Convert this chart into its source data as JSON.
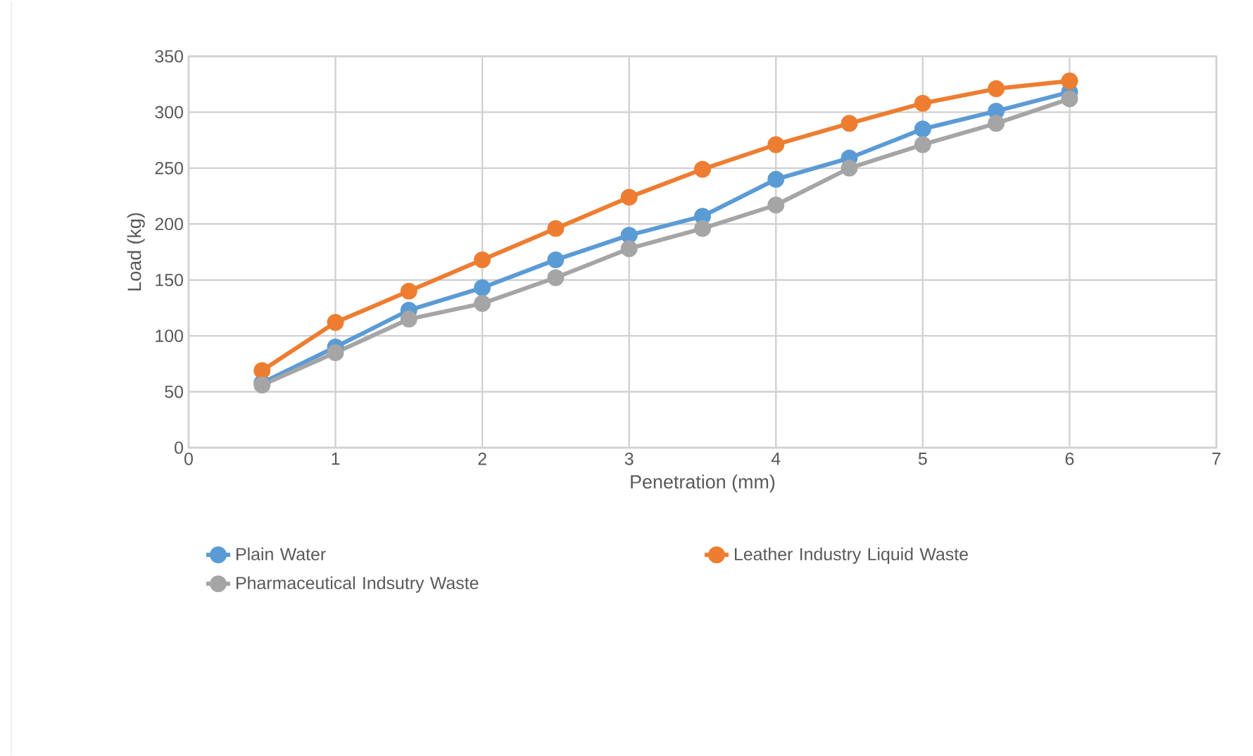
{
  "chart_data": {
    "type": "line",
    "xlabel": "Penetration (mm)",
    "ylabel": "Load (kg)",
    "x": [
      0.5,
      1,
      1.5,
      2,
      2.5,
      3,
      3.5,
      4,
      4.5,
      5,
      5.5,
      6
    ],
    "series": [
      {
        "name": "Plain Water",
        "color": "#5b9bd5",
        "values": [
          58,
          90,
          123,
          143,
          168,
          190,
          207,
          240,
          259,
          285,
          301,
          318
        ]
      },
      {
        "name": "Leather Industry Liquid Waste",
        "color": "#ed7d31",
        "values": [
          69,
          112,
          140,
          168,
          196,
          224,
          249,
          271,
          290,
          308,
          321,
          328
        ]
      },
      {
        "name": "Pharmaceutical Indsutry Waste",
        "color": "#a5a5a5",
        "values": [
          56,
          85,
          115,
          129,
          152,
          178,
          196,
          217,
          250,
          271,
          290,
          312
        ]
      }
    ],
    "xlim": [
      0,
      7
    ],
    "ylim": [
      0,
      350
    ],
    "xticks": [
      0,
      1,
      2,
      3,
      4,
      5,
      6,
      7
    ],
    "yticks": [
      0,
      50,
      100,
      150,
      200,
      250,
      300,
      350
    ],
    "grid": true,
    "legend": "bottom",
    "marker": "circle",
    "line_style": "solid"
  }
}
